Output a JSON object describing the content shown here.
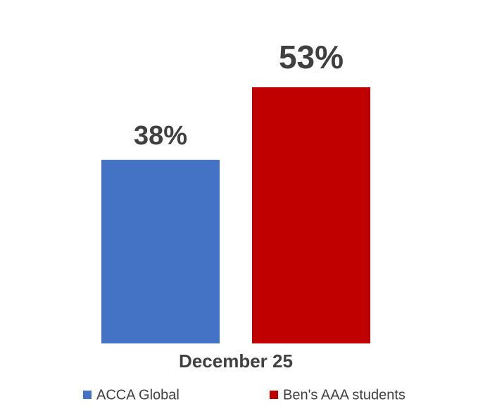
{
  "chart_data": {
    "type": "bar",
    "categories": [
      "December 25"
    ],
    "series": [
      {
        "name": "ACCA Global",
        "color": "#4472c4",
        "values": [
          38
        ],
        "value_labels": [
          "38%"
        ]
      },
      {
        "name": "Ben's AAA students",
        "color": "#c00000",
        "values": [
          53
        ],
        "value_labels": [
          "53%"
        ]
      }
    ]
  }
}
